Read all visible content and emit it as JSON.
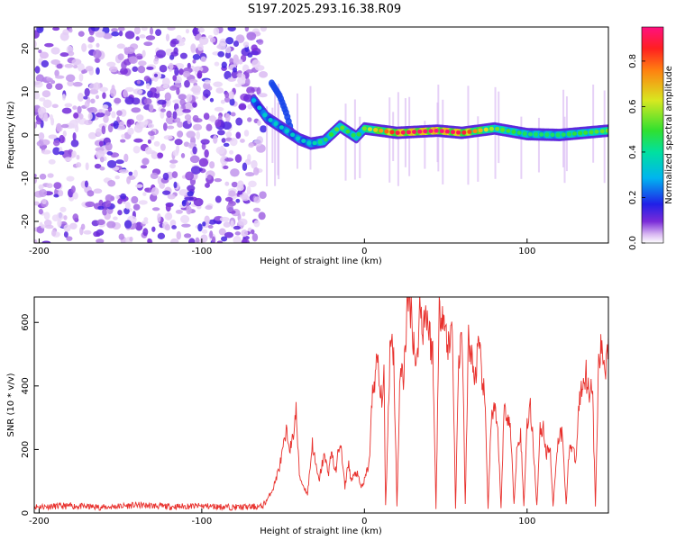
{
  "title": "S197.2025.293.16.38.R09",
  "colors": {
    "snr_line": "#e8302c",
    "axis": "#000000"
  },
  "chart_data": [
    {
      "type": "heatmap",
      "xlabel": "Height of straight line (km)",
      "ylabel": "Frequency (Hz)",
      "xlim": [
        -203,
        150
      ],
      "ylim": [
        -25,
        25
      ],
      "x_ticks": [
        -200,
        -100,
        0,
        100
      ],
      "y_ticks": [
        -20,
        -10,
        0,
        10,
        20
      ],
      "colorbar": {
        "label": "Normalized spectral amplitude",
        "range": [
          0.0,
          0.95
        ],
        "ticks": [
          0.0,
          0.2,
          0.4,
          0.6,
          0.8
        ],
        "colormap": "rainbow"
      },
      "description_values": {
        "noise_region_x": [
          -203,
          -62
        ],
        "ridge": {
          "x": [
            -68,
            -60,
            -50,
            -40,
            -33,
            -25,
            -15,
            -5,
            0,
            20,
            45,
            60,
            80,
            100,
            120,
            150
          ],
          "freq": [
            8,
            4,
            1.5,
            -1,
            -2,
            -1.5,
            2,
            -0.5,
            1.5,
            0.5,
            1,
            0.5,
            1.5,
            0.2,
            0,
            1
          ],
          "amplitude": [
            0.3,
            0.35,
            0.35,
            0.35,
            0.35,
            0.45,
            0.55,
            0.45,
            0.55,
            0.9,
            0.95,
            0.9,
            0.55,
            0.45,
            0.45,
            0.55
          ]
        },
        "side_branch": {
          "x": [
            -57,
            -52,
            -48,
            -45
          ],
          "freq": [
            12,
            9,
            5,
            1
          ]
        }
      }
    },
    {
      "type": "line",
      "xlabel": "Height of straight line (km)",
      "ylabel": "SNR (10 * v/v)",
      "xlim": [
        -203,
        150
      ],
      "ylim": [
        0,
        680
      ],
      "x_ticks": [
        -200,
        -100,
        0,
        100
      ],
      "y_ticks": [
        0,
        200,
        400,
        600
      ],
      "series": [
        {
          "x": [
            -203,
            -180,
            -160,
            -140,
            -120,
            -100,
            -80,
            -63,
            -60,
            -56,
            -52,
            -48,
            -45,
            -42,
            -40,
            -38,
            -35,
            -32,
            -30,
            -28,
            -25,
            -22,
            -20,
            -18,
            -15,
            -12,
            -10,
            -8,
            -5,
            -2,
            0,
            3,
            5,
            8,
            10,
            12,
            13,
            14,
            16,
            18,
            20,
            22,
            24,
            26,
            28,
            30,
            32,
            34,
            36,
            38,
            40,
            42,
            44,
            46,
            48,
            50,
            52,
            54,
            56,
            58,
            60,
            62,
            64,
            66,
            68,
            70,
            72,
            74,
            76,
            78,
            80,
            82,
            84,
            86,
            88,
            90,
            92,
            94,
            96,
            98,
            100,
            102,
            104,
            106,
            108,
            110,
            112,
            114,
            116,
            118,
            120,
            122,
            124,
            126,
            128,
            130,
            132,
            134,
            136,
            138,
            140,
            142,
            144,
            146,
            148,
            150
          ],
          "y": [
            20,
            22,
            18,
            25,
            20,
            22,
            18,
            20,
            40,
            80,
            150,
            250,
            200,
            320,
            120,
            90,
            60,
            220,
            150,
            100,
            180,
            130,
            200,
            120,
            230,
            80,
            160,
            100,
            130,
            80,
            100,
            160,
            380,
            480,
            350,
            420,
            20,
            180,
            580,
            500,
            20,
            450,
            420,
            620,
            680,
            560,
            450,
            650,
            590,
            640,
            560,
            500,
            20,
            620,
            660,
            560,
            520,
            600,
            15,
            480,
            580,
            20,
            560,
            480,
            420,
            520,
            450,
            350,
            20,
            300,
            320,
            250,
            20,
            340,
            300,
            260,
            20,
            230,
            250,
            20,
            290,
            330,
            200,
            20,
            260,
            270,
            180,
            220,
            20,
            180,
            260,
            240,
            20,
            220,
            200,
            160,
            350,
            400,
            450,
            380,
            420,
            20,
            470,
            520,
            450,
            560
          ]
        }
      ]
    }
  ]
}
